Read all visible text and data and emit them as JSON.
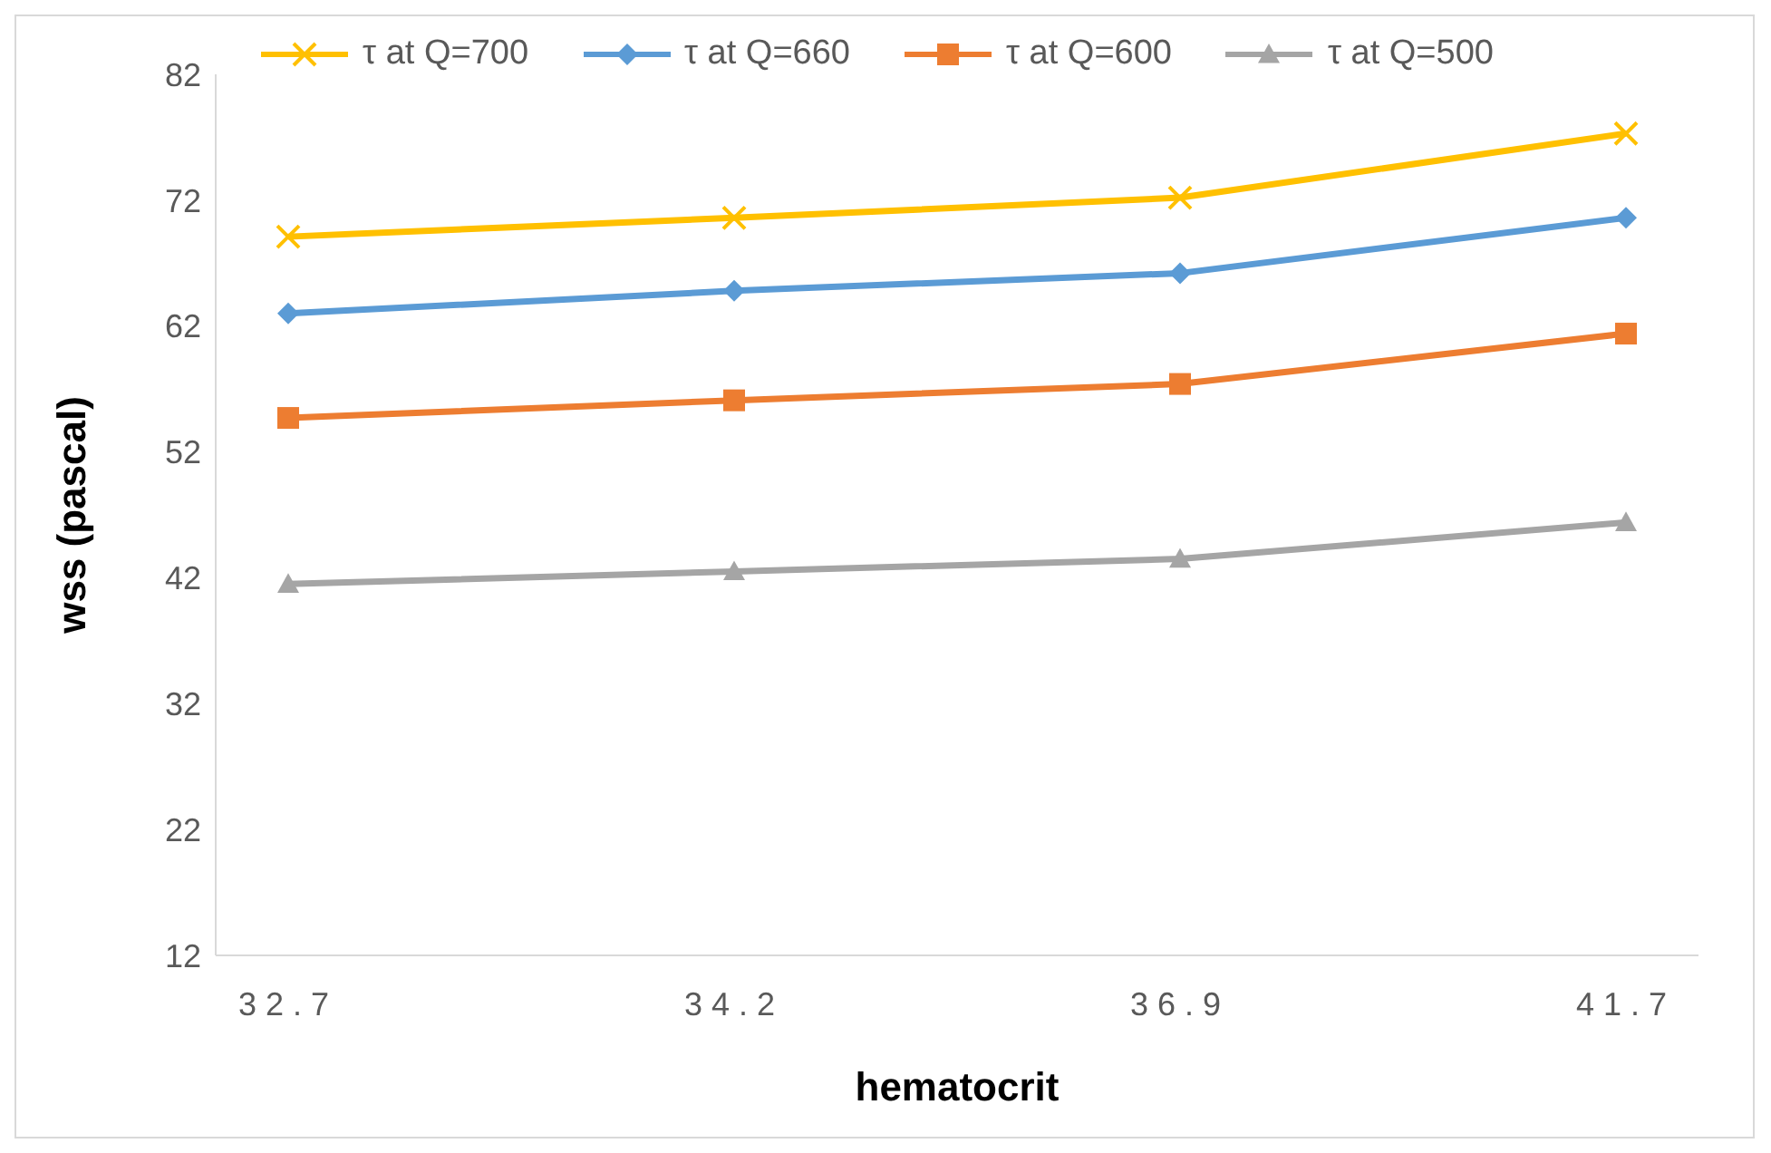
{
  "chart_data": {
    "type": "line",
    "xlabel": "hematocrit",
    "ylabel": "wss (pascal)",
    "categories": [
      "32.7",
      "34.2",
      "36.9",
      "41.7"
    ],
    "ylim": [
      12,
      82
    ],
    "yticks": [
      12,
      22,
      32,
      42,
      52,
      62,
      72,
      82
    ],
    "grid": false,
    "legend": "top",
    "series": [
      {
        "name": "τ at Q=700",
        "color": "#ffc000",
        "marker": "cross",
        "values": [
          69.1,
          70.6,
          72.2,
          77.3
        ]
      },
      {
        "name": "τ at Q=660",
        "color": "#5b9bd5",
        "marker": "diamond",
        "values": [
          63.0,
          64.8,
          66.2,
          70.6
        ]
      },
      {
        "name": "τ at Q=600",
        "color": "#ed7d31",
        "marker": "square",
        "values": [
          54.7,
          56.1,
          57.4,
          61.4
        ]
      },
      {
        "name": "τ at Q=500",
        "color": "#a5a5a5",
        "marker": "triangle",
        "values": [
          41.5,
          42.5,
          43.5,
          46.4
        ]
      }
    ]
  }
}
